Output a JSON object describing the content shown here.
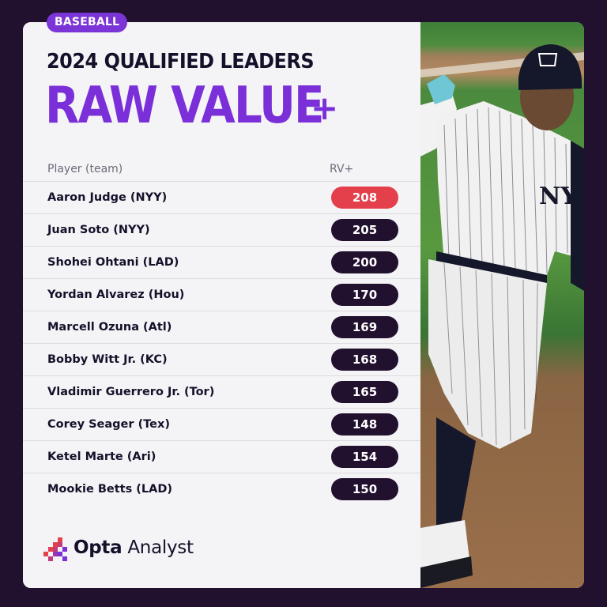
{
  "badge": "BASEBALL",
  "title_top": "2024 QUALIFIED LEADERS",
  "title_main": "RAW VALUE",
  "title_plus": "+",
  "columns": {
    "player": "Player (team)",
    "value": "RV+"
  },
  "rows": [
    {
      "name": "Aaron Judge (NYY)",
      "value": "208"
    },
    {
      "name": "Juan Soto (NYY)",
      "value": "205"
    },
    {
      "name": "Shohei Ohtani (LAD)",
      "value": "200"
    },
    {
      "name": "Yordan Alvarez (Hou)",
      "value": "170"
    },
    {
      "name": "Marcell Ozuna (Atl)",
      "value": "169"
    },
    {
      "name": "Bobby Witt Jr. (KC)",
      "value": "168"
    },
    {
      "name": "Vladimir Guerrero Jr. (Tor)",
      "value": "165"
    },
    {
      "name": "Corey Seager (Tex)",
      "value": "148"
    },
    {
      "name": "Ketel Marte (Ari)",
      "value": "154"
    },
    {
      "name": "Mookie Betts (LAD)",
      "value": "150"
    }
  ],
  "logo": {
    "brand": "Opta",
    "product": " Analyst"
  },
  "colors": {
    "background": "#22102f",
    "accent_purple": "#7b2fd8",
    "highlight_red": "#e3404b",
    "pill_dark": "#22102f"
  },
  "photo": {
    "icon": "baseball-player-photo"
  }
}
